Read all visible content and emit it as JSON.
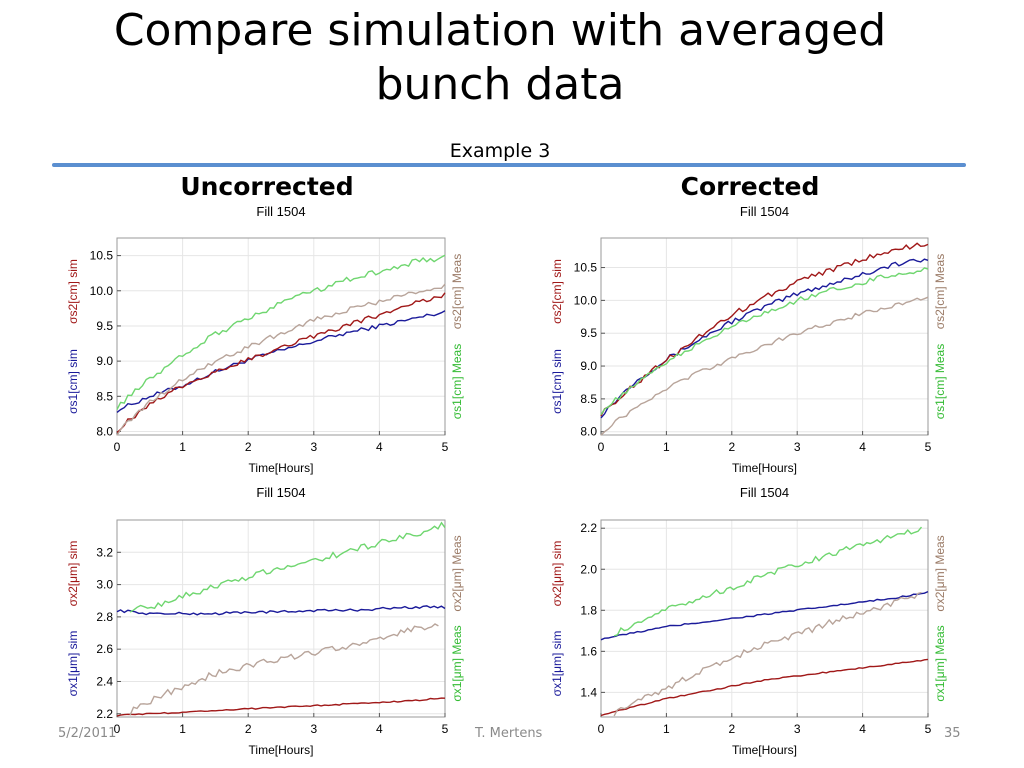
{
  "slide": {
    "title_line1": "Compare simulation with averaged",
    "title_line2": "bunch data",
    "subtitle": "Example 3",
    "left_heading": "Uncorrected",
    "right_heading": "Corrected",
    "footer_date": "5/2/2011",
    "footer_author": "T. Mertens",
    "footer_page": "35"
  },
  "colors": {
    "accent_rule": "#5b8fd0",
    "sim1": "#1a1a9a",
    "sim2": "#a01818",
    "meas1": "#6fd66f",
    "meas2": "#b8a49a"
  },
  "chart_data": [
    {
      "type": "line",
      "title": "Fill 1504",
      "xlabel": "Time[Hours]",
      "ylabel_left": [
        "σs1[cm] sim",
        "σs2[cm] sim"
      ],
      "ylabel_right": [
        "σs1[cm] Meas",
        "σs2[cm] Meas"
      ],
      "xlim": [
        0,
        5
      ],
      "ylim": [
        7.95,
        10.75
      ],
      "x_ticks": [
        0,
        1,
        2,
        3,
        4,
        5
      ],
      "y_ticks": [
        8.0,
        8.5,
        9.0,
        9.5,
        10.0,
        10.5
      ],
      "grid": true,
      "series": [
        {
          "key": "sim1",
          "color": "#1a1a9a",
          "noise": 0.03,
          "x": [
            0,
            0.5,
            1,
            1.5,
            2,
            2.5,
            3,
            3.5,
            4,
            4.5,
            5
          ],
          "values": [
            8.3,
            8.5,
            8.65,
            8.85,
            9.02,
            9.15,
            9.28,
            9.4,
            9.5,
            9.6,
            9.7
          ]
        },
        {
          "key": "sim2",
          "color": "#a01818",
          "noise": 0.035,
          "x": [
            0,
            0.5,
            1,
            1.5,
            2,
            2.5,
            3,
            3.5,
            4,
            4.5,
            5
          ],
          "values": [
            8.02,
            8.4,
            8.65,
            8.85,
            9.02,
            9.2,
            9.36,
            9.5,
            9.66,
            9.82,
            9.95
          ]
        },
        {
          "key": "meas1",
          "color": "#6fd66f",
          "noise": 0.04,
          "x": [
            0,
            0.5,
            1,
            1.5,
            2,
            2.5,
            3,
            3.5,
            4,
            4.5,
            5
          ],
          "values": [
            8.35,
            8.75,
            9.1,
            9.38,
            9.62,
            9.82,
            10.0,
            10.15,
            10.28,
            10.4,
            10.48
          ]
        },
        {
          "key": "meas2",
          "color": "#b8a49a",
          "noise": 0.035,
          "x": [
            0,
            0.5,
            1,
            1.5,
            2,
            2.5,
            3,
            3.5,
            4,
            4.5,
            5
          ],
          "values": [
            7.98,
            8.42,
            8.75,
            9.0,
            9.2,
            9.4,
            9.58,
            9.72,
            9.85,
            9.97,
            10.07
          ]
        }
      ]
    },
    {
      "type": "line",
      "title": "Fill 1504",
      "xlabel": "Time[Hours]",
      "ylabel_left": [
        "σs1[cm] sim",
        "σs2[cm] sim"
      ],
      "ylabel_right": [
        "σs1[cm] Meas",
        "σs2[cm] Meas"
      ],
      "xlim": [
        0,
        5
      ],
      "ylim": [
        7.95,
        10.95
      ],
      "x_ticks": [
        0,
        1,
        2,
        3,
        4,
        5
      ],
      "y_ticks": [
        8.0,
        8.5,
        9.0,
        9.5,
        10.0,
        10.5
      ],
      "grid": true,
      "series": [
        {
          "key": "sim1",
          "color": "#1a1a9a",
          "noise": 0.04,
          "x": [
            0,
            0.5,
            1,
            1.5,
            2,
            2.5,
            3,
            3.5,
            4,
            4.5,
            5
          ],
          "values": [
            8.25,
            8.75,
            9.1,
            9.4,
            9.68,
            9.9,
            10.1,
            10.25,
            10.4,
            10.55,
            10.62
          ]
        },
        {
          "key": "sim2",
          "color": "#a01818",
          "noise": 0.04,
          "x": [
            0,
            0.5,
            1,
            1.5,
            2,
            2.5,
            3,
            3.5,
            4,
            4.5,
            5
          ],
          "values": [
            8.28,
            8.7,
            9.1,
            9.45,
            9.78,
            10.05,
            10.28,
            10.46,
            10.62,
            10.78,
            10.86
          ]
        },
        {
          "key": "meas1",
          "color": "#6fd66f",
          "noise": 0.04,
          "x": [
            0,
            0.5,
            1,
            1.5,
            2,
            2.5,
            3,
            3.5,
            4,
            4.5,
            5
          ],
          "values": [
            8.3,
            8.7,
            9.05,
            9.35,
            9.6,
            9.82,
            10.0,
            10.15,
            10.28,
            10.4,
            10.48
          ]
        },
        {
          "key": "meas2",
          "color": "#b8a49a",
          "noise": 0.035,
          "x": [
            0,
            0.5,
            1,
            1.5,
            2,
            2.5,
            3,
            3.5,
            4,
            4.5,
            5
          ],
          "values": [
            7.98,
            8.35,
            8.65,
            8.9,
            9.12,
            9.32,
            9.5,
            9.65,
            9.8,
            9.93,
            10.05
          ]
        }
      ]
    },
    {
      "type": "line",
      "title": "Fill 1504",
      "xlabel": "Time[Hours]",
      "ylabel_left": [
        "σx1[μm] sim",
        "σx2[μm] sim"
      ],
      "ylabel_right": [
        "σx1[μm] Meas",
        "σx2[μm] Meas"
      ],
      "xlim": [
        0,
        5
      ],
      "ylim": [
        2.18,
        3.4
      ],
      "x_ticks": [
        0,
        1,
        2,
        3,
        4,
        5
      ],
      "y_ticks": [
        2.2,
        2.4,
        2.6,
        2.8,
        3.0,
        3.2
      ],
      "grid": true,
      "series": [
        {
          "key": "sim1",
          "color": "#1a1a9a",
          "noise": 0.008,
          "x": [
            0,
            0.5,
            1,
            1.5,
            2,
            2.5,
            3,
            3.5,
            4,
            4.5,
            5
          ],
          "values": [
            2.84,
            2.82,
            2.82,
            2.82,
            2.83,
            2.83,
            2.84,
            2.84,
            2.85,
            2.86,
            2.86
          ]
        },
        {
          "key": "sim2",
          "color": "#a01818",
          "noise": 0.004,
          "x": [
            0,
            0.5,
            1,
            1.5,
            2,
            2.5,
            3,
            3.5,
            4,
            4.5,
            5
          ],
          "values": [
            2.19,
            2.2,
            2.21,
            2.22,
            2.23,
            2.24,
            2.25,
            2.26,
            2.27,
            2.28,
            2.3
          ]
        },
        {
          "key": "meas1",
          "color": "#6fd66f",
          "noise": 0.02,
          "x": [
            0.2,
            0.5,
            1,
            1.5,
            2,
            2.5,
            3,
            3.5,
            4,
            4.5,
            5
          ],
          "values": [
            2.85,
            2.86,
            2.93,
            2.99,
            3.05,
            3.1,
            3.15,
            3.2,
            3.26,
            3.31,
            3.37
          ]
        },
        {
          "key": "meas2",
          "color": "#b8a49a",
          "noise": 0.02,
          "x": [
            0.2,
            0.5,
            1,
            1.5,
            2,
            2.5,
            3,
            3.5,
            4,
            4.5,
            4.9
          ],
          "values": [
            2.21,
            2.28,
            2.37,
            2.45,
            2.5,
            2.54,
            2.58,
            2.62,
            2.67,
            2.72,
            2.76
          ]
        }
      ]
    },
    {
      "type": "line",
      "title": "Fill 1504",
      "xlabel": "Time[Hours]",
      "ylabel_left": [
        "σx1[μm] sim",
        "σx2[μm] sim"
      ],
      "ylabel_right": [
        "σx1[μm] Meas",
        "σx2[μm] Meas"
      ],
      "xlim": [
        0,
        5
      ],
      "ylim": [
        1.28,
        2.24
      ],
      "x_ticks": [
        0,
        1,
        2,
        3,
        4,
        5
      ],
      "y_ticks": [
        1.4,
        1.6,
        1.8,
        2.0,
        2.2
      ],
      "grid": true,
      "series": [
        {
          "key": "sim1",
          "color": "#1a1a9a",
          "noise": 0.004,
          "x": [
            0,
            0.5,
            1,
            1.5,
            2,
            2.5,
            3,
            3.5,
            4,
            4.5,
            5
          ],
          "values": [
            1.66,
            1.69,
            1.72,
            1.74,
            1.76,
            1.78,
            1.8,
            1.82,
            1.84,
            1.86,
            1.89
          ]
        },
        {
          "key": "sim2",
          "color": "#a01818",
          "noise": 0.003,
          "x": [
            0,
            0.5,
            1,
            1.5,
            2,
            2.5,
            3,
            3.5,
            4,
            4.5,
            5
          ],
          "values": [
            1.29,
            1.33,
            1.37,
            1.4,
            1.43,
            1.46,
            1.48,
            1.5,
            1.52,
            1.54,
            1.56
          ]
        },
        {
          "key": "meas1",
          "color": "#6fd66f",
          "noise": 0.015,
          "x": [
            0.2,
            0.5,
            1,
            1.5,
            2,
            2.5,
            3,
            3.5,
            4,
            4.5,
            4.9
          ],
          "values": [
            1.69,
            1.72,
            1.8,
            1.86,
            1.91,
            1.97,
            2.02,
            2.07,
            2.12,
            2.16,
            2.2
          ]
        },
        {
          "key": "meas2",
          "color": "#b8a49a",
          "noise": 0.015,
          "x": [
            0.2,
            0.5,
            1,
            1.5,
            2,
            2.5,
            3,
            3.5,
            4,
            4.5,
            4.9
          ],
          "values": [
            1.3,
            1.35,
            1.42,
            1.5,
            1.57,
            1.63,
            1.68,
            1.74,
            1.79,
            1.84,
            1.88
          ]
        }
      ]
    }
  ]
}
